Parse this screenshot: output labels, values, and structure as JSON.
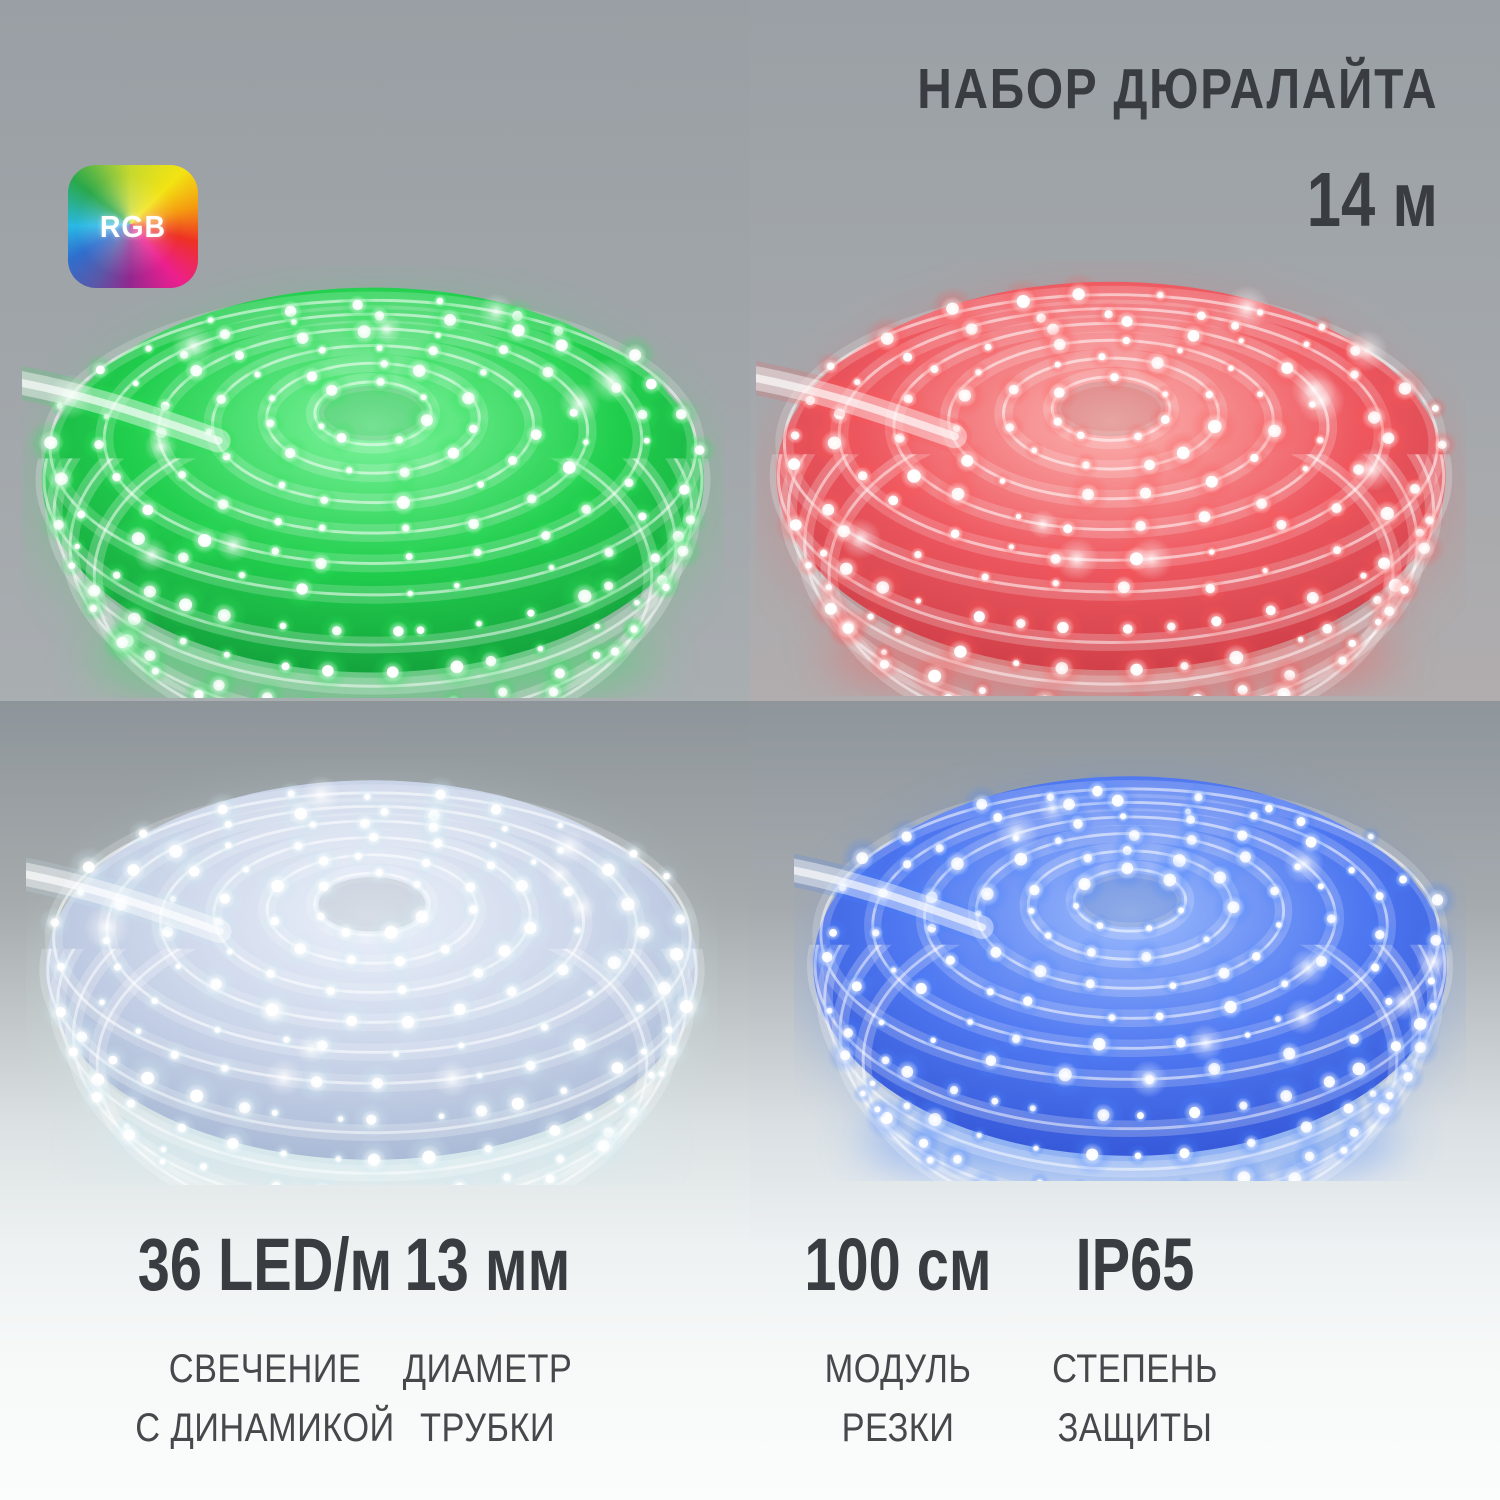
{
  "header": {
    "badge_label": "RGB",
    "title": "НАБОР ДЮРАЛАЙТА",
    "length_value": "14 м"
  },
  "colors": {
    "text_primary": "#393d41",
    "text_secondary": "#46494c",
    "badge_text": "#ffffff",
    "badge_gradient": [
      "#c6d92e 0deg",
      "#f2e313 45deg",
      "#f59b10 75deg",
      "#ee3124 105deg",
      "#ec1f8f 140deg",
      "#93278f 180deg",
      "#5b57a7 210deg",
      "#2e6fce 240deg",
      "#29b8e5 268deg",
      "#2aa84a 308deg",
      "#8cc63f 338deg",
      "#c6d92e 360deg"
    ]
  },
  "photos": [
    {
      "name": "green rope light coil",
      "body_core": "#7ef79e",
      "body_mid": "#1ccf49",
      "body_edge": "#0f9c38",
      "led_halo": "#b9ffcb",
      "glow": "#2ee35b"
    },
    {
      "name": "red rope light coil",
      "body_core": "#ffb3b0",
      "body_mid": "#f0545c",
      "body_edge": "#cc3a44",
      "led_halo": "#ffd9d6",
      "glow": "#ff5656"
    },
    {
      "name": "white rope light coil",
      "body_core": "#eef3fd",
      "body_mid": "#c9d4ea",
      "body_edge": "#a4b4d2",
      "led_halo": "#ffffff",
      "glow": "#cfeaf2"
    },
    {
      "name": "blue rope light coil",
      "body_core": "#9cbcff",
      "body_mid": "#4a74f2",
      "body_edge": "#2f51d4",
      "led_halo": "#dbe7ff",
      "glow": "#4a86ff"
    }
  ],
  "specs": [
    {
      "value": "36 LED/м",
      "label_line1": "СВЕЧЕНИЕ",
      "label_line2": "С ДИНАМИКОЙ"
    },
    {
      "value": "13 мм",
      "label_line1": "ДИАМЕТР",
      "label_line2": "ТРУБКИ"
    },
    {
      "value": "100 см",
      "label_line1": "МОДУЛЬ",
      "label_line2": "РЕЗКИ"
    },
    {
      "value": "IP65",
      "label_line1": "СТЕПЕНЬ",
      "label_line2": "ЗАЩИТЫ"
    }
  ]
}
